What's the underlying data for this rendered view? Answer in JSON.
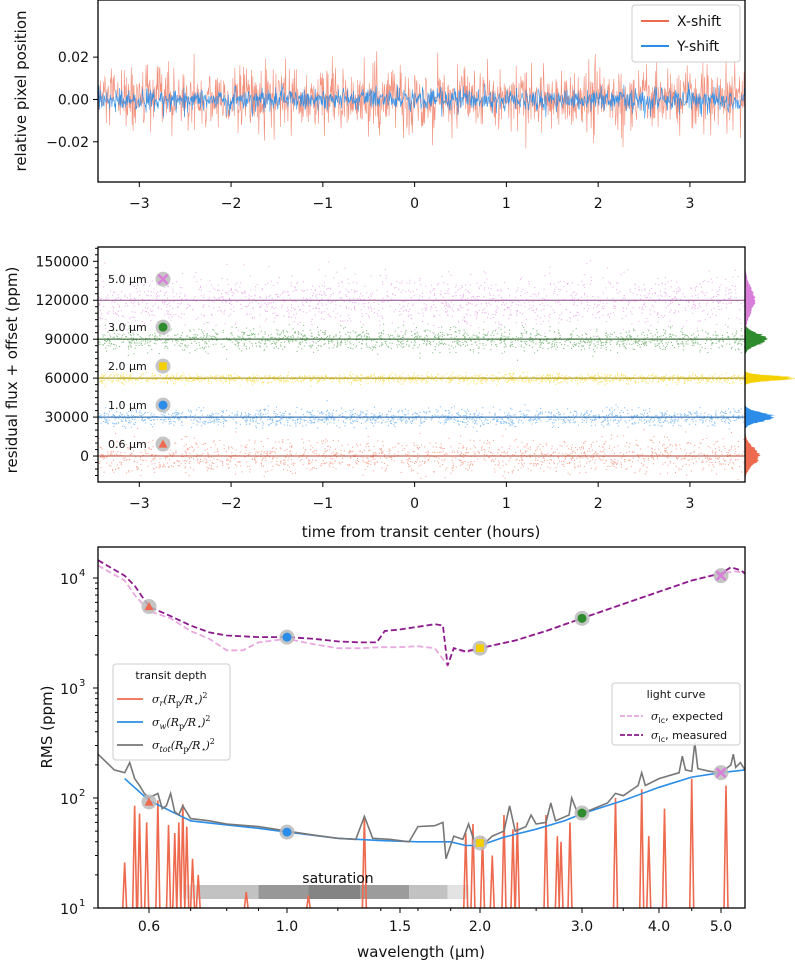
{
  "chart_data": [
    {
      "type": "line",
      "title": "",
      "xlabel": "",
      "ylabel": "relative pixel position",
      "xlim": [
        -3.45,
        3.6
      ],
      "ylim": [
        -0.039,
        0.047
      ],
      "xticks": [
        -3,
        -2,
        -1,
        0,
        1,
        2,
        3
      ],
      "xtick_labels": [
        "−3",
        "−2",
        "−1",
        "0",
        "1",
        "2",
        "3"
      ],
      "yticks": [
        0.02,
        0.0,
        -0.02
      ],
      "ytick_labels": [
        "0.02",
        "0.00",
        "−0.02"
      ],
      "legend_position": "top-right",
      "series": [
        {
          "name": "X-shift",
          "color": "#EE6A4E",
          "mean": 0.0,
          "noise_sigma": 0.0075
        },
        {
          "name": "Y-shift",
          "color": "#2B8DE8",
          "mean": 0.0,
          "noise_sigma": 0.0028
        }
      ]
    },
    {
      "type": "scatter",
      "xlabel": "time from transit center (hours)",
      "ylabel": "residual flux + offset (ppm)",
      "xlim": [
        -3.45,
        3.6
      ],
      "ylim": [
        -20000,
        161000
      ],
      "xticks": [
        -3,
        -2,
        -1,
        0,
        1,
        2,
        3
      ],
      "xtick_labels": [
        "−3",
        "−2",
        "−1",
        "0",
        "1",
        "2",
        "3"
      ],
      "yticks": [
        0,
        30000,
        60000,
        90000,
        120000,
        150000
      ],
      "ytick_labels": [
        "0",
        "30000",
        "60000",
        "90000",
        "120000",
        "150000"
      ],
      "series": [
        {
          "name": "0.6 μm",
          "offset": 0,
          "noise_sigma": 6500,
          "color": "#EE6A4E",
          "marker": "triangle"
        },
        {
          "name": "1.0 μm",
          "offset": 30000,
          "noise_sigma": 3200,
          "color": "#2B8DE8",
          "marker": "circle"
        },
        {
          "name": "2.0 μm",
          "offset": 60000,
          "noise_sigma": 1800,
          "color": "#F5D000",
          "marker": "square"
        },
        {
          "name": "3.0 μm",
          "offset": 90000,
          "noise_sigma": 4200,
          "color": "#2E8B2E",
          "marker": "circle"
        },
        {
          "name": "5.0 μm",
          "offset": 120000,
          "noise_sigma": 10000,
          "color": "#D97FD9",
          "marker": "x"
        }
      ]
    },
    {
      "type": "line",
      "xlabel": "wavelength (μm)",
      "ylabel": "RMS (ppm)",
      "yscale": "log",
      "xlim": [
        0.5,
        5.5
      ],
      "ylim": [
        10,
        19500
      ],
      "xticks": [
        0.6,
        1.0,
        1.5,
        2.0,
        3.0,
        4.0,
        5.0
      ],
      "xtick_labels": [
        "0.6",
        "1.0",
        "1.5",
        "2.0",
        "3.0",
        "4.0",
        "5.0"
      ],
      "yticks": [
        10,
        100,
        1000,
        10000
      ],
      "ytick_bases": [
        "10",
        "10",
        "10",
        "10"
      ],
      "ytick_exps": [
        "1",
        "2",
        "3",
        "4"
      ],
      "legend_light_curve": {
        "title": "light curve",
        "entries": [
          {
            "sym": "σ",
            "sub": "lc",
            "text": ", expected",
            "color": "#E8A8E0"
          },
          {
            "sym": "σ",
            "sub": "lc",
            "text": ", measured",
            "color": "#8B1A8B"
          }
        ]
      },
      "legend_transit_depth": {
        "title": "transit depth",
        "entries": [
          {
            "sub": "r",
            "color": "#EE6A4E"
          },
          {
            "sub": "w",
            "color": "#2B8DE8"
          },
          {
            "sub": "tot",
            "color": "#777777"
          }
        ],
        "expr_sym": "σ",
        "expr_rest": "(R",
        "expr_p": "p",
        "expr_mid": "/R",
        "expr_star": "⋆",
        "expr_end": ")",
        "expr_pow": "2"
      },
      "annotation": "saturation",
      "saturation_bands": [
        {
          "from": 0.68,
          "to": 0.72,
          "shade": "#E3E3E3"
        },
        {
          "from": 0.72,
          "to": 0.9,
          "shade": "#C2C2C2"
        },
        {
          "from": 0.9,
          "to": 1.08,
          "shade": "#989898"
        },
        {
          "from": 1.08,
          "to": 1.3,
          "shade": "#848484"
        },
        {
          "from": 1.3,
          "to": 1.55,
          "shade": "#9C9C9C"
        },
        {
          "from": 1.55,
          "to": 1.78,
          "shade": "#C2C2C2"
        },
        {
          "from": 1.78,
          "to": 1.92,
          "shade": "#E3E3E3"
        }
      ],
      "lc_expected": [
        [
          0.5,
          13000
        ],
        [
          0.55,
          9500
        ],
        [
          0.57,
          7000
        ],
        [
          0.6,
          5000
        ],
        [
          0.65,
          4300
        ],
        [
          0.7,
          3300
        ],
        [
          0.75,
          2800
        ],
        [
          0.8,
          2200
        ],
        [
          0.85,
          2200
        ],
        [
          0.9,
          2600
        ],
        [
          1.0,
          2800
        ],
        [
          1.1,
          2500
        ],
        [
          1.2,
          2300
        ],
        [
          1.3,
          2300
        ],
        [
          1.4,
          2350
        ],
        [
          1.5,
          2350
        ],
        [
          1.6,
          2400
        ],
        [
          1.7,
          2300
        ],
        [
          1.78,
          1600
        ],
        [
          1.82,
          2300
        ],
        [
          1.9,
          2100
        ],
        [
          2.0,
          2300
        ],
        [
          2.3,
          2700
        ],
        [
          2.6,
          3300
        ],
        [
          3.0,
          4300
        ],
        [
          3.5,
          5800
        ],
        [
          4.0,
          7500
        ],
        [
          4.5,
          9500
        ],
        [
          5.0,
          11000
        ],
        [
          5.3,
          11500
        ],
        [
          5.5,
          11000
        ]
      ],
      "lc_measured": [
        [
          0.5,
          14500
        ],
        [
          0.55,
          10500
        ],
        [
          0.57,
          8500
        ],
        [
          0.6,
          5500
        ],
        [
          0.65,
          4500
        ],
        [
          0.7,
          3700
        ],
        [
          0.75,
          3200
        ],
        [
          0.8,
          3000
        ],
        [
          0.9,
          2900
        ],
        [
          1.0,
          2900
        ],
        [
          1.1,
          2800
        ],
        [
          1.2,
          2650
        ],
        [
          1.3,
          2600
        ],
        [
          1.38,
          2600
        ],
        [
          1.42,
          3300
        ],
        [
          1.5,
          3400
        ],
        [
          1.6,
          3600
        ],
        [
          1.7,
          3800
        ],
        [
          1.75,
          3700
        ],
        [
          1.78,
          1600
        ],
        [
          1.82,
          2300
        ],
        [
          1.9,
          2150
        ],
        [
          2.0,
          2300
        ],
        [
          2.3,
          2700
        ],
        [
          2.6,
          3300
        ],
        [
          3.0,
          4300
        ],
        [
          3.5,
          5800
        ],
        [
          4.0,
          7500
        ],
        [
          4.5,
          9500
        ],
        [
          5.0,
          11000
        ],
        [
          5.2,
          12500
        ],
        [
          5.4,
          11800
        ],
        [
          5.5,
          11000
        ]
      ],
      "rms_total": [
        [
          0.5,
          250
        ],
        [
          0.53,
          180
        ],
        [
          0.55,
          170
        ],
        [
          0.56,
          210
        ],
        [
          0.57,
          150
        ],
        [
          0.58,
          130
        ],
        [
          0.59,
          110
        ],
        [
          0.6,
          100
        ],
        [
          0.62,
          110
        ],
        [
          0.63,
          80
        ],
        [
          0.64,
          85
        ],
        [
          0.65,
          110
        ],
        [
          0.66,
          75
        ],
        [
          0.67,
          70
        ],
        [
          0.68,
          85
        ],
        [
          0.7,
          65
        ],
        [
          0.75,
          62
        ],
        [
          0.8,
          58
        ],
        [
          0.9,
          55
        ],
        [
          1.0,
          50
        ],
        [
          1.1,
          46
        ],
        [
          1.2,
          43
        ],
        [
          1.28,
          42
        ],
        [
          1.32,
          68
        ],
        [
          1.36,
          43
        ],
        [
          1.45,
          42
        ],
        [
          1.55,
          40
        ],
        [
          1.6,
          55
        ],
        [
          1.7,
          56
        ],
        [
          1.75,
          60
        ],
        [
          1.77,
          28
        ],
        [
          1.82,
          45
        ],
        [
          1.88,
          42
        ],
        [
          1.92,
          58
        ],
        [
          1.96,
          40
        ],
        [
          2.0,
          42
        ],
        [
          2.05,
          40
        ],
        [
          2.1,
          45
        ],
        [
          2.2,
          50
        ],
        [
          2.25,
          85
        ],
        [
          2.3,
          50
        ],
        [
          2.4,
          55
        ],
        [
          2.45,
          70
        ],
        [
          2.5,
          58
        ],
        [
          2.6,
          60
        ],
        [
          2.65,
          90
        ],
        [
          2.7,
          62
        ],
        [
          2.85,
          70
        ],
        [
          2.88,
          100
        ],
        [
          2.95,
          72
        ],
        [
          3.1,
          78
        ],
        [
          3.3,
          90
        ],
        [
          3.4,
          110
        ],
        [
          3.5,
          105
        ],
        [
          3.7,
          130
        ],
        [
          3.75,
          170
        ],
        [
          3.8,
          130
        ],
        [
          4.0,
          150
        ],
        [
          4.3,
          170
        ],
        [
          4.35,
          240
        ],
        [
          4.4,
          180
        ],
        [
          4.5,
          175
        ],
        [
          4.55,
          320
        ],
        [
          4.6,
          185
        ],
        [
          4.8,
          175
        ],
        [
          5.0,
          170
        ],
        [
          5.2,
          200
        ],
        [
          5.25,
          250
        ],
        [
          5.3,
          190
        ],
        [
          5.4,
          210
        ],
        [
          5.5,
          180
        ]
      ],
      "rms_white": [
        [
          0.55,
          150
        ],
        [
          0.6,
          95
        ],
        [
          0.7,
          62
        ],
        [
          0.8,
          57
        ],
        [
          0.9,
          53
        ],
        [
          1.0,
          49
        ],
        [
          1.2,
          43
        ],
        [
          1.4,
          41
        ],
        [
          1.6,
          40
        ],
        [
          1.8,
          40
        ],
        [
          1.9,
          37
        ],
        [
          2.0,
          37
        ],
        [
          2.2,
          44
        ],
        [
          2.5,
          52
        ],
        [
          2.8,
          62
        ],
        [
          3.0,
          72
        ],
        [
          3.5,
          95
        ],
        [
          4.0,
          125
        ],
        [
          4.5,
          155
        ],
        [
          5.0,
          170
        ],
        [
          5.5,
          180
        ]
      ],
      "rms_red_spikes": [
        [
          0.55,
          26
        ],
        [
          0.57,
          85
        ],
        [
          0.58,
          72
        ],
        [
          0.595,
          60
        ],
        [
          0.62,
          95
        ],
        [
          0.645,
          57
        ],
        [
          0.66,
          48
        ],
        [
          0.67,
          60
        ],
        [
          0.68,
          88
        ],
        [
          0.69,
          55
        ],
        [
          0.705,
          28
        ],
        [
          0.72,
          20
        ],
        [
          0.86,
          14
        ],
        [
          1.08,
          13
        ],
        [
          1.32,
          68
        ],
        [
          1.9,
          48
        ],
        [
          1.95,
          58
        ],
        [
          2.02,
          45
        ],
        [
          2.1,
          30
        ],
        [
          2.2,
          70
        ],
        [
          2.28,
          52
        ],
        [
          2.32,
          60
        ],
        [
          2.6,
          70
        ],
        [
          2.72,
          45
        ],
        [
          2.76,
          40
        ],
        [
          2.86,
          60
        ],
        [
          3.4,
          100
        ],
        [
          3.75,
          120
        ],
        [
          3.85,
          45
        ],
        [
          4.08,
          80
        ],
        [
          4.5,
          150
        ],
        [
          5.1,
          130
        ]
      ],
      "markers_lc": [
        {
          "wl": 0.6,
          "value": 5500,
          "color": "#EE6A4E",
          "marker": "triangle"
        },
        {
          "wl": 1.0,
          "value": 2900,
          "color": "#2B8DE8",
          "marker": "circle"
        },
        {
          "wl": 2.0,
          "value": 2300,
          "color": "#F5D000",
          "marker": "square"
        },
        {
          "wl": 3.0,
          "value": 4300,
          "color": "#2E8B2E",
          "marker": "circle"
        },
        {
          "wl": 5.0,
          "value": 10500,
          "color": "#D97FD9",
          "marker": "x"
        }
      ],
      "markers_depth": [
        {
          "wl": 0.6,
          "value": 92,
          "color": "#EE6A4E",
          "marker": "triangle"
        },
        {
          "wl": 1.0,
          "value": 49,
          "color": "#2B8DE8",
          "marker": "circle"
        },
        {
          "wl": 2.0,
          "value": 39,
          "color": "#F5D000",
          "marker": "square"
        },
        {
          "wl": 3.0,
          "value": 73,
          "color": "#2E8B2E",
          "marker": "circle"
        },
        {
          "wl": 5.0,
          "value": 170,
          "color": "#D97FD9",
          "marker": "x"
        }
      ]
    }
  ]
}
